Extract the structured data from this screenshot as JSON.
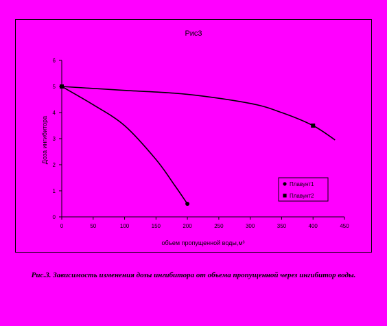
{
  "chart_data": {
    "type": "line",
    "title": "Рис3",
    "xlabel": "объем пропущенной воды,м³",
    "ylabel": "Доза ингибитора",
    "xlim": [
      0,
      450
    ],
    "ylim": [
      0,
      6
    ],
    "xticks": [
      "0",
      "50",
      "100",
      "150",
      "200",
      "250",
      "300",
      "350",
      "400",
      "450"
    ],
    "yticks": [
      "0",
      "1",
      "2",
      "3",
      "4",
      "5",
      "6"
    ],
    "grid": false,
    "legend": "right",
    "series": [
      {
        "name": "Плавунт1",
        "color": "#000000",
        "marker": "circle",
        "marked_points": [
          [
            0,
            5.0
          ],
          [
            200,
            0.5
          ]
        ],
        "values": [
          [
            0,
            5.0
          ],
          [
            50,
            4.3
          ],
          [
            100,
            3.5
          ],
          [
            150,
            2.2
          ],
          [
            180,
            1.2
          ],
          [
            200,
            0.5
          ]
        ]
      },
      {
        "name": "Плавунт2",
        "color": "#000000",
        "marker": "square",
        "marked_points": [
          [
            0,
            5.0
          ],
          [
            400,
            3.5
          ]
        ],
        "values": [
          [
            0,
            5.0
          ],
          [
            100,
            4.85
          ],
          [
            200,
            4.7
          ],
          [
            300,
            4.35
          ],
          [
            350,
            4.0
          ],
          [
            400,
            3.5
          ],
          [
            435,
            2.95
          ]
        ]
      }
    ]
  },
  "caption": "Рис.3. Зависимость изменения дозы ингибитора от объема пропущенной через ингибитор воды."
}
